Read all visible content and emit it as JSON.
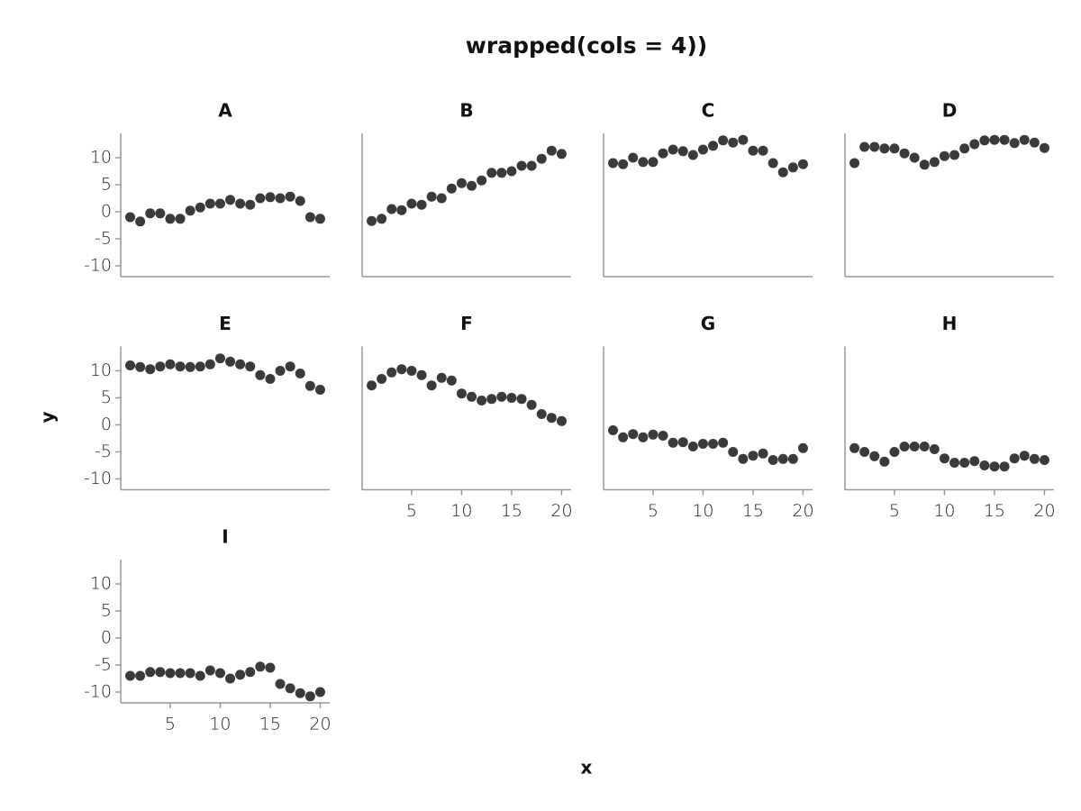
{
  "figure": {
    "title": "wrapped(cols = 4))",
    "x_label": "x",
    "y_label": "y"
  },
  "chart_data": [
    {
      "type": "scatter",
      "title": "A",
      "color": "#3a3a3a",
      "xlim": [
        0.05,
        20.95
      ],
      "ylim": [
        -12,
        14.5
      ],
      "yticks": [
        -10,
        -5,
        0,
        5,
        10
      ],
      "x": [
        1,
        2,
        3,
        4,
        5,
        6,
        7,
        8,
        9,
        10,
        11,
        12,
        13,
        14,
        15,
        16,
        17,
        18,
        19,
        20
      ],
      "values": [
        -1.0,
        -1.8,
        -0.3,
        -0.3,
        -1.3,
        -1.3,
        0.2,
        0.8,
        1.5,
        1.5,
        2.2,
        1.5,
        1.3,
        2.5,
        2.7,
        2.5,
        2.8,
        2.0,
        -1.0,
        -1.3
      ]
    },
    {
      "type": "scatter",
      "title": "B",
      "color": "#3a3a3a",
      "xlim": [
        0.05,
        20.95
      ],
      "ylim": [
        -12,
        14.5
      ],
      "x": [
        1,
        2,
        3,
        4,
        5,
        6,
        7,
        8,
        9,
        10,
        11,
        12,
        13,
        14,
        15,
        16,
        17,
        18,
        19,
        20
      ],
      "values": [
        -1.7,
        -1.3,
        0.5,
        0.3,
        1.5,
        1.3,
        2.8,
        2.5,
        4.3,
        5.3,
        4.8,
        5.8,
        7.2,
        7.2,
        7.5,
        8.5,
        8.5,
        9.8,
        11.3,
        10.7
      ]
    },
    {
      "type": "scatter",
      "title": "C",
      "color": "#3a3a3a",
      "xlim": [
        0.05,
        20.95
      ],
      "ylim": [
        -12,
        14.5
      ],
      "x": [
        1,
        2,
        3,
        4,
        5,
        6,
        7,
        8,
        9,
        10,
        11,
        12,
        13,
        14,
        15,
        16,
        17,
        18,
        19,
        20
      ],
      "values": [
        9.0,
        8.8,
        10.0,
        9.2,
        9.2,
        10.8,
        11.5,
        11.2,
        10.5,
        11.5,
        12.2,
        13.2,
        12.8,
        13.3,
        11.3,
        11.3,
        9.0,
        7.3,
        8.2,
        8.8
      ]
    },
    {
      "type": "scatter",
      "title": "D",
      "color": "#3a3a3a",
      "xlim": [
        0.05,
        20.95
      ],
      "ylim": [
        -12,
        14.5
      ],
      "x": [
        1,
        2,
        3,
        4,
        5,
        6,
        7,
        8,
        9,
        10,
        11,
        12,
        13,
        14,
        15,
        16,
        17,
        18,
        19,
        20
      ],
      "values": [
        9.0,
        12.0,
        12.0,
        11.7,
        11.7,
        10.8,
        10.0,
        8.7,
        9.2,
        10.3,
        10.5,
        11.7,
        12.5,
        13.2,
        13.3,
        13.3,
        12.7,
        13.3,
        12.8,
        11.8
      ]
    },
    {
      "type": "scatter",
      "title": "E",
      "color": "#3a3a3a",
      "xlim": [
        0.05,
        20.95
      ],
      "ylim": [
        -12,
        14.5
      ],
      "yticks": [
        -10,
        -5,
        0,
        5,
        10
      ],
      "x": [
        1,
        2,
        3,
        4,
        5,
        6,
        7,
        8,
        9,
        10,
        11,
        12,
        13,
        14,
        15,
        16,
        17,
        18,
        19,
        20
      ],
      "values": [
        11.0,
        10.7,
        10.3,
        10.8,
        11.2,
        10.8,
        10.7,
        10.8,
        11.2,
        12.3,
        11.7,
        11.2,
        10.8,
        9.2,
        8.5,
        10.0,
        10.8,
        9.5,
        7.2,
        6.5
      ]
    },
    {
      "type": "scatter",
      "title": "F",
      "color": "#3a3a3a",
      "xlim": [
        0.05,
        20.95
      ],
      "ylim": [
        -12,
        14.5
      ],
      "xticks": [
        5,
        10,
        15,
        20
      ],
      "x": [
        1,
        2,
        3,
        4,
        5,
        6,
        7,
        8,
        9,
        10,
        11,
        12,
        13,
        14,
        15,
        16,
        17,
        18,
        19,
        20
      ],
      "values": [
        7.3,
        8.5,
        9.7,
        10.3,
        10.0,
        9.2,
        7.3,
        8.7,
        8.2,
        5.8,
        5.2,
        4.5,
        4.8,
        5.2,
        5.0,
        4.8,
        3.7,
        2.0,
        1.3,
        0.7
      ]
    },
    {
      "type": "scatter",
      "title": "G",
      "color": "#3a3a3a",
      "xlim": [
        0.05,
        20.95
      ],
      "ylim": [
        -12,
        14.5
      ],
      "xticks": [
        5,
        10,
        15,
        20
      ],
      "x": [
        1,
        2,
        3,
        4,
        5,
        6,
        7,
        8,
        9,
        10,
        11,
        12,
        13,
        14,
        15,
        16,
        17,
        18,
        19,
        20
      ],
      "values": [
        -1.0,
        -2.3,
        -1.7,
        -2.3,
        -1.8,
        -2.0,
        -3.3,
        -3.2,
        -4.0,
        -3.5,
        -3.5,
        -3.3,
        -5.0,
        -6.3,
        -5.7,
        -5.3,
        -6.5,
        -6.3,
        -6.3,
        -4.3
      ]
    },
    {
      "type": "scatter",
      "title": "H",
      "color": "#3a3a3a",
      "xlim": [
        0.05,
        20.95
      ],
      "ylim": [
        -12,
        14.5
      ],
      "xticks": [
        5,
        10,
        15,
        20
      ],
      "x": [
        1,
        2,
        3,
        4,
        5,
        6,
        7,
        8,
        9,
        10,
        11,
        12,
        13,
        14,
        15,
        16,
        17,
        18,
        19,
        20
      ],
      "values": [
        -4.3,
        -5.0,
        -5.8,
        -6.8,
        -5.0,
        -4.0,
        -4.0,
        -4.0,
        -4.5,
        -6.2,
        -7.0,
        -7.0,
        -6.7,
        -7.5,
        -7.7,
        -7.7,
        -6.2,
        -5.7,
        -6.3,
        -6.5
      ]
    },
    {
      "type": "scatter",
      "title": "I",
      "color": "#3a3a3a",
      "xlim": [
        0.05,
        20.95
      ],
      "ylim": [
        -12,
        14.5
      ],
      "yticks": [
        -10,
        -5,
        0,
        5,
        10
      ],
      "xticks": [
        5,
        10,
        15,
        20
      ],
      "x": [
        1,
        2,
        3,
        4,
        5,
        6,
        7,
        8,
        9,
        10,
        11,
        12,
        13,
        14,
        15,
        16,
        17,
        18,
        19,
        20
      ],
      "values": [
        -7.0,
        -7.0,
        -6.3,
        -6.3,
        -6.5,
        -6.5,
        -6.5,
        -7.0,
        -6.0,
        -6.5,
        -7.5,
        -6.8,
        -6.3,
        -5.3,
        -5.5,
        -8.5,
        -9.3,
        -10.2,
        -10.8,
        -10.0
      ]
    }
  ]
}
